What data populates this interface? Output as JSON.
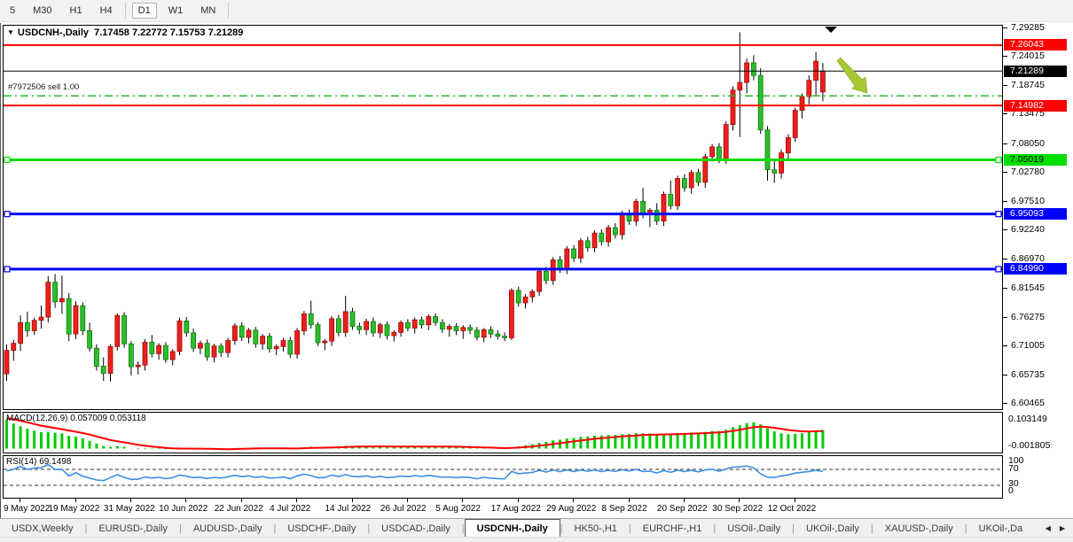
{
  "toolbar": {
    "items": [
      {
        "label": "5",
        "active": false
      },
      {
        "label": "M30",
        "active": false
      },
      {
        "label": "H1",
        "active": false
      },
      {
        "label": "H4",
        "active": false
      },
      {
        "sep": true
      },
      {
        "label": "D1",
        "active": true
      },
      {
        "label": "W1",
        "active": false
      },
      {
        "label": "MN",
        "active": false
      },
      {
        "sep": true
      }
    ]
  },
  "chart": {
    "title_symbol": "USDCNH-,Daily",
    "title_ohlc": "7.17458 7.22772 7.15753 7.21289",
    "position_label": "#7972506 sell 1.00",
    "dropdown_glyph": "▼"
  },
  "macd": {
    "label": "MACD(12,26,9) 0.057009 0.053118",
    "scale_max": "0.103149",
    "scale_min": "-0.001805",
    "params": {
      "fast": 12,
      "slow": 26,
      "signal": 9
    },
    "value_main": 0.057009,
    "value_signal": 0.053118
  },
  "rsi": {
    "label": "RSI(14) 69.1498",
    "period": 14,
    "value": 69.1498,
    "scale": [
      "100",
      "70",
      "30",
      "0"
    ],
    "levels": [
      70,
      30
    ]
  },
  "price_axis": {
    "plain_ticks": [
      "7.29285",
      "7.24015",
      "7.18745",
      "7.13475",
      "7.08050",
      "7.02780",
      "6.97510",
      "6.92240",
      "6.86970",
      "6.81545",
      "6.76275",
      "6.71005",
      "6.65735",
      "6.60465"
    ]
  },
  "tabs": {
    "items": [
      {
        "label": "USDX,Weekly",
        "active": false
      },
      {
        "label": "EURUSD-,Daily",
        "active": false
      },
      {
        "label": "AUDUSD-,Daily",
        "active": false
      },
      {
        "label": "USDCHF-,Daily",
        "active": false
      },
      {
        "label": "USDCAD-,Daily",
        "active": false
      },
      {
        "label": "USDCNH-,Daily",
        "active": true
      },
      {
        "label": "HK50-,H1",
        "active": false
      },
      {
        "label": "EURCHF-,H1",
        "active": false
      },
      {
        "label": "USOil-,Daily",
        "active": false
      },
      {
        "label": "UKOil-,Daily",
        "active": false
      },
      {
        "label": "XAUUSD-,Daily",
        "active": false
      },
      {
        "label": "UKOil-,Da",
        "active": false,
        "truncated": true
      }
    ],
    "scroll_left": "◀",
    "scroll_right": "▶"
  },
  "colors": {
    "candle_up": "#ee201c",
    "candle_up_border": "#9c0b06",
    "candle_down": "#2dbd2d",
    "candle_down_border": "#0b7a0b",
    "wick": "#000000",
    "level_red": "#ff0000",
    "level_green": "#00dd00",
    "level_blue": "#0000ff",
    "current_price_line": "#000000",
    "sell_line": "#2db82d",
    "macd_hist": "#00cc00",
    "macd_signal": "#ff0000",
    "rsi_line": "#3b8ee8",
    "arrow_annotation": "#a6c832",
    "marker": "#000000"
  },
  "chart_data": {
    "type": "candlestick",
    "symbol": "USDCNH-",
    "timeframe": "Daily",
    "ylim": [
      6.60465,
      7.29285
    ],
    "last_ohlc": {
      "open": 7.17458,
      "high": 7.22772,
      "low": 7.15753,
      "close": 7.21289
    },
    "x_dates": [
      {
        "i": 2,
        "label": "9 May 2022"
      },
      {
        "i": 10,
        "label": "19 May 2022"
      },
      {
        "i": 18,
        "label": "31 May 2022"
      },
      {
        "i": 26,
        "label": "10 Jun 2022"
      },
      {
        "i": 34,
        "label": "22 Jun 2022"
      },
      {
        "i": 42,
        "label": "4 Jul 2022"
      },
      {
        "i": 50,
        "label": "14 Jul 2022"
      },
      {
        "i": 58,
        "label": "26 Jul 2022"
      },
      {
        "i": 66,
        "label": "5 Aug 2022"
      },
      {
        "i": 74,
        "label": "17 Aug 2022"
      },
      {
        "i": 82,
        "label": "29 Aug 2022"
      },
      {
        "i": 90,
        "label": "8 Sep 2022"
      },
      {
        "i": 98,
        "label": "20 Sep 2022"
      },
      {
        "i": 106,
        "label": "30 Sep 2022"
      },
      {
        "i": 114,
        "label": "12 Oct 2022"
      }
    ],
    "levels": [
      {
        "price": 7.26043,
        "color": "#ff0000",
        "width": 2,
        "style": "solid",
        "badge_bg": "#ff0000",
        "badge_fg": "#ffffff",
        "text": "7.26043"
      },
      {
        "price": 7.21289,
        "color": "#000000",
        "width": 1,
        "style": "solid",
        "badge_bg": "#000000",
        "badge_fg": "#ffffff",
        "text": "7.21289",
        "role": "current-price"
      },
      {
        "price": 7.1675,
        "color": "#2db82d",
        "width": 1.5,
        "style": "dashdot",
        "label": "#7972506 sell 1.00",
        "role": "open-position-sell"
      },
      {
        "price": 7.14982,
        "color": "#ff0000",
        "width": 2,
        "style": "solid",
        "badge_bg": "#ff0000",
        "badge_fg": "#ffffff",
        "text": "7.14982"
      },
      {
        "price": 7.05019,
        "color": "#00dd00",
        "width": 3,
        "style": "solid",
        "badge_bg": "#00dd00",
        "badge_fg": "#000000",
        "text": "7.05019",
        "handles": true
      },
      {
        "price": 6.95093,
        "color": "#0000ff",
        "width": 3,
        "style": "solid",
        "badge_bg": "#0000ff",
        "badge_fg": "#ffffff",
        "text": "6.95093",
        "handles": true
      },
      {
        "price": 6.8499,
        "color": "#0000ff",
        "width": 3,
        "style": "solid",
        "badge_bg": "#0000ff",
        "badge_fg": "#ffffff",
        "text": "6.84990",
        "handles": true
      }
    ],
    "annotations": {
      "down_triangle_marker": {
        "x": 926,
        "y": 1
      },
      "arrow": {
        "from": [
          942,
          38
        ],
        "to": [
          974,
          76
        ]
      }
    },
    "candles": [
      [
        6.658,
        6.712,
        6.645,
        6.701
      ],
      [
        6.701,
        6.72,
        6.682,
        6.714
      ],
      [
        6.714,
        6.765,
        6.7,
        6.752
      ],
      [
        6.752,
        6.772,
        6.726,
        6.737
      ],
      [
        6.737,
        6.761,
        6.729,
        6.756
      ],
      [
        6.756,
        6.783,
        6.741,
        6.762
      ],
      [
        6.762,
        6.837,
        6.752,
        6.826
      ],
      [
        6.826,
        6.841,
        6.779,
        6.79
      ],
      [
        6.79,
        6.838,
        6.768,
        6.796
      ],
      [
        6.796,
        6.806,
        6.718,
        6.731
      ],
      [
        6.731,
        6.791,
        6.722,
        6.783
      ],
      [
        6.783,
        6.789,
        6.729,
        6.737
      ],
      [
        6.737,
        6.752,
        6.699,
        6.705
      ],
      [
        6.705,
        6.712,
        6.664,
        6.672
      ],
      [
        6.672,
        6.688,
        6.645,
        6.659
      ],
      [
        6.659,
        6.712,
        6.644,
        6.708
      ],
      [
        6.708,
        6.769,
        6.701,
        6.765
      ],
      [
        6.765,
        6.771,
        6.706,
        6.713
      ],
      [
        6.713,
        6.718,
        6.655,
        6.671
      ],
      [
        6.671,
        6.681,
        6.657,
        6.674
      ],
      [
        6.674,
        6.722,
        6.664,
        6.716
      ],
      [
        6.716,
        6.729,
        6.688,
        6.695
      ],
      [
        6.695,
        6.714,
        6.684,
        6.71
      ],
      [
        6.71,
        6.716,
        6.678,
        6.684
      ],
      [
        6.684,
        6.703,
        6.674,
        6.699
      ],
      [
        6.699,
        6.761,
        6.692,
        6.755
      ],
      [
        6.755,
        6.762,
        6.726,
        6.733
      ],
      [
        6.733,
        6.741,
        6.698,
        6.705
      ],
      [
        6.705,
        6.719,
        6.694,
        6.714
      ],
      [
        6.714,
        6.721,
        6.682,
        6.689
      ],
      [
        6.689,
        6.713,
        6.679,
        6.709
      ],
      [
        6.709,
        6.714,
        6.689,
        6.697
      ],
      [
        6.697,
        6.724,
        6.688,
        6.719
      ],
      [
        6.719,
        6.751,
        6.711,
        6.746
      ],
      [
        6.746,
        6.753,
        6.718,
        6.725
      ],
      [
        6.725,
        6.742,
        6.714,
        6.738
      ],
      [
        6.738,
        6.744,
        6.706,
        6.713
      ],
      [
        6.713,
        6.731,
        6.702,
        6.727
      ],
      [
        6.727,
        6.733,
        6.697,
        6.704
      ],
      [
        6.704,
        6.712,
        6.692,
        6.708
      ],
      [
        6.708,
        6.724,
        6.699,
        6.719
      ],
      [
        6.719,
        6.726,
        6.687,
        6.694
      ],
      [
        6.694,
        6.742,
        6.686,
        6.737
      ],
      [
        6.737,
        6.773,
        6.729,
        6.768
      ],
      [
        6.768,
        6.792,
        6.741,
        6.748
      ],
      [
        6.748,
        6.753,
        6.709,
        6.715
      ],
      [
        6.715,
        6.722,
        6.701,
        6.718
      ],
      [
        6.718,
        6.764,
        6.709,
        6.759
      ],
      [
        6.759,
        6.766,
        6.727,
        6.734
      ],
      [
        6.734,
        6.801,
        6.726,
        6.772
      ],
      [
        6.772,
        6.779,
        6.739,
        6.745
      ],
      [
        6.745,
        6.752,
        6.731,
        6.739
      ],
      [
        6.739,
        6.759,
        6.729,
        6.754
      ],
      [
        6.754,
        6.761,
        6.726,
        6.733
      ],
      [
        6.733,
        6.752,
        6.724,
        6.748
      ],
      [
        6.748,
        6.754,
        6.721,
        6.728
      ],
      [
        6.728,
        6.738,
        6.717,
        6.734
      ],
      [
        6.734,
        6.756,
        6.726,
        6.752
      ],
      [
        6.752,
        6.758,
        6.736,
        6.742
      ],
      [
        6.742,
        6.761,
        6.732,
        6.757
      ],
      [
        6.757,
        6.763,
        6.741,
        6.748
      ],
      [
        6.748,
        6.767,
        6.738,
        6.763
      ],
      [
        6.763,
        6.769,
        6.746,
        6.752
      ],
      [
        6.752,
        6.758,
        6.733,
        6.74
      ],
      [
        6.74,
        6.749,
        6.726,
        6.745
      ],
      [
        6.745,
        6.751,
        6.729,
        6.737
      ],
      [
        6.737,
        6.747,
        6.722,
        6.743
      ],
      [
        6.743,
        6.749,
        6.731,
        6.738
      ],
      [
        6.738,
        6.744,
        6.719,
        6.725
      ],
      [
        6.725,
        6.742,
        6.716,
        6.739
      ],
      [
        6.739,
        6.745,
        6.724,
        6.731
      ],
      [
        6.731,
        6.738,
        6.721,
        6.727
      ],
      [
        6.727,
        6.734,
        6.718,
        6.724
      ],
      [
        6.724,
        6.815,
        6.72,
        6.811
      ],
      [
        6.811,
        6.818,
        6.781,
        6.788
      ],
      [
        6.788,
        6.804,
        6.778,
        6.799
      ],
      [
        6.799,
        6.813,
        6.789,
        6.809
      ],
      [
        6.809,
        6.852,
        6.801,
        6.846
      ],
      [
        6.846,
        6.854,
        6.822,
        6.829
      ],
      [
        6.829,
        6.872,
        6.821,
        6.867
      ],
      [
        6.867,
        6.874,
        6.843,
        6.85
      ],
      [
        6.85,
        6.892,
        6.841,
        6.887
      ],
      [
        6.887,
        6.894,
        6.863,
        6.87
      ],
      [
        6.87,
        6.907,
        6.861,
        6.902
      ],
      [
        6.902,
        6.909,
        6.882,
        6.889
      ],
      [
        6.889,
        6.921,
        6.881,
        6.916
      ],
      [
        6.916,
        6.923,
        6.893,
        6.9
      ],
      [
        6.9,
        6.931,
        6.891,
        6.926
      ],
      [
        6.926,
        6.934,
        6.906,
        6.913
      ],
      [
        6.913,
        6.957,
        6.904,
        6.952
      ],
      [
        6.952,
        6.959,
        6.931,
        6.938
      ],
      [
        6.938,
        6.979,
        6.929,
        6.974
      ],
      [
        6.974,
        6.999,
        6.943,
        6.95
      ],
      [
        6.95,
        6.962,
        6.927,
        6.958
      ],
      [
        6.958,
        6.971,
        6.931,
        6.938
      ],
      [
        6.938,
        6.992,
        6.929,
        6.987
      ],
      [
        6.987,
        7.012,
        6.959,
        6.966
      ],
      [
        6.966,
        7.021,
        6.958,
        7.016
      ],
      [
        7.016,
        7.024,
        6.992,
        6.999
      ],
      [
        6.999,
        7.032,
        6.988,
        7.027
      ],
      [
        7.027,
        7.034,
        7.002,
        7.009
      ],
      [
        7.009,
        7.061,
        6.999,
        7.056
      ],
      [
        7.056,
        7.079,
        7.047,
        7.074
      ],
      [
        7.074,
        7.081,
        7.044,
        7.051
      ],
      [
        7.051,
        7.121,
        7.043,
        7.115
      ],
      [
        7.115,
        7.185,
        7.104,
        7.178
      ],
      [
        7.178,
        7.284,
        7.092,
        7.192
      ],
      [
        7.192,
        7.236,
        7.172,
        7.228
      ],
      [
        7.228,
        7.242,
        7.196,
        7.205
      ],
      [
        7.205,
        7.218,
        7.098,
        7.105
      ],
      [
        7.105,
        7.112,
        7.012,
        7.032
      ],
      [
        7.032,
        7.052,
        7.008,
        7.026
      ],
      [
        7.026,
        7.069,
        7.016,
        7.063
      ],
      [
        7.063,
        7.097,
        7.052,
        7.091
      ],
      [
        7.091,
        7.146,
        7.083,
        7.141
      ],
      [
        7.141,
        7.172,
        7.126,
        7.166
      ],
      [
        7.166,
        7.205,
        7.152,
        7.196
      ],
      [
        7.196,
        7.248,
        7.168,
        7.231
      ],
      [
        7.17458,
        7.22772,
        7.15753,
        7.21289
      ]
    ]
  }
}
